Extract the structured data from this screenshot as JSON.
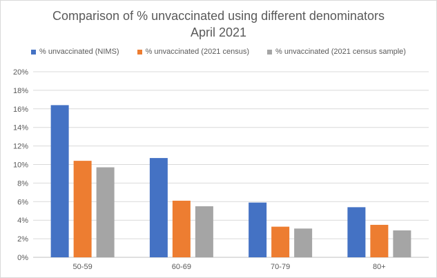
{
  "chart_data": {
    "type": "bar",
    "title": "Comparison of % unvaccinated using different denominators",
    "subtitle": "April 2021",
    "categories": [
      "50-59",
      "60-69",
      "70-79",
      "80+"
    ],
    "series": [
      {
        "name": "% unvaccinated (NIMS)",
        "color": "#4472C4",
        "values": [
          16.4,
          10.7,
          5.9,
          5.4
        ]
      },
      {
        "name": "% unvaccinated (2021 census)",
        "color": "#ED7D31",
        "values": [
          10.4,
          6.1,
          3.3,
          3.5
        ]
      },
      {
        "name": "% unvaccinated (2021 census sample)",
        "color": "#A5A5A5",
        "values": [
          9.7,
          5.5,
          3.1,
          2.9
        ]
      }
    ],
    "y_ticks": [
      "0%",
      "2%",
      "4%",
      "6%",
      "8%",
      "10%",
      "12%",
      "14%",
      "16%",
      "18%",
      "20%"
    ],
    "ylim": [
      0,
      20
    ],
    "y_unit": "%",
    "xlabel": "",
    "ylabel": "",
    "grid": true,
    "legend_position": "top"
  }
}
